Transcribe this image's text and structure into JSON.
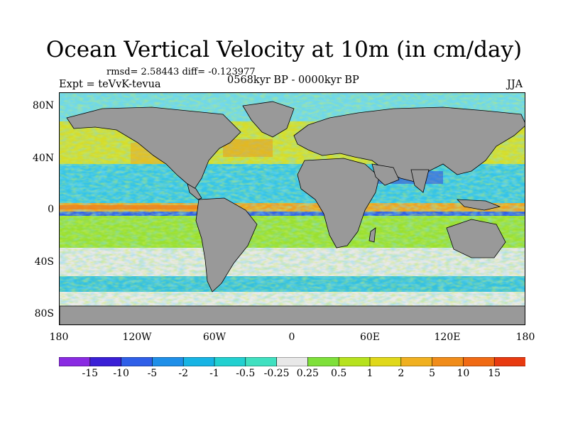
{
  "title": "Ocean Vertical Velocity at 10m (in cm/day)",
  "stats": "rmsd= 2.58443  diff= -0.123977",
  "experiment": "Expt = teVvK-tevua",
  "period": "0568kyr BP - 0000kyr BP",
  "season": "JJA",
  "lat_labels": [
    "80N",
    "40N",
    "0",
    "40S",
    "80S"
  ],
  "lon_labels": [
    "180",
    "120W",
    "60W",
    "0",
    "60E",
    "120E",
    "180"
  ],
  "colorbar": {
    "labels": [
      "-15",
      "-10",
      "-5",
      "-2",
      "-1",
      "-0.5",
      "-0.25",
      "0.25",
      "0.5",
      "1",
      "2",
      "5",
      "10",
      "15"
    ],
    "colors": [
      "#8a2be2",
      "#3a1fd6",
      "#2f5fe8",
      "#1f8fe8",
      "#17b4e4",
      "#22d0d0",
      "#40e0c0",
      "#e8e8e8",
      "#7ee03a",
      "#b6e21e",
      "#e0d81a",
      "#f0b020",
      "#f08c1a",
      "#f06a14",
      "#e83a10"
    ]
  },
  "colors": {
    "land": "#999999",
    "no_motion": "#e8e8e8"
  }
}
